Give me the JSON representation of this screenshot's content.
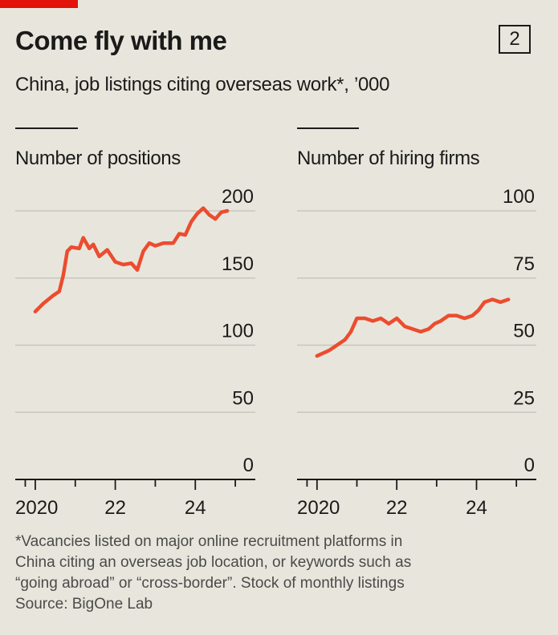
{
  "header": {
    "title": "Come fly with me",
    "chart_number": "2",
    "subtitle": "China, job listings citing overseas work*, ’000"
  },
  "footnote": {
    "lines": [
      "*Vacancies listed on major online recruitment platforms in",
      "China citing an overseas job location, or keywords such as",
      "“going abroad” or “cross-border”. Stock of monthly listings",
      "Source: BigOne Lab"
    ]
  },
  "colors": {
    "accent": "#e3120b",
    "line": "#ec4c2f",
    "background": "#e8e6dc",
    "grid": "#c8c6bd"
  },
  "chart_data": [
    {
      "type": "line",
      "title": "Number of positions",
      "xlabel": "",
      "ylabel": "",
      "ylim": [
        0,
        200
      ],
      "yticks": [
        0,
        50,
        100,
        150,
        200
      ],
      "xlim": [
        2019.5,
        2025.5
      ],
      "xticks": [
        2020,
        2022,
        2024
      ],
      "xtick_labels": [
        "2020",
        "22",
        "24"
      ],
      "grid": true,
      "series": [
        {
          "x": [
            2020.0,
            2020.2,
            2020.45,
            2020.6,
            2020.7,
            2020.8,
            2020.9,
            2021.1,
            2021.2,
            2021.35,
            2021.45,
            2021.6,
            2021.8,
            2022.0,
            2022.2,
            2022.4,
            2022.55,
            2022.7,
            2022.85,
            2023.0,
            2023.2,
            2023.45,
            2023.6,
            2023.75,
            2023.9,
            2024.05,
            2024.2,
            2024.35,
            2024.5,
            2024.65,
            2024.8
          ],
          "y": [
            125,
            131,
            137,
            140,
            152,
            170,
            173,
            172,
            180,
            172,
            175,
            166,
            171,
            162,
            160,
            161,
            156,
            170,
            176,
            174,
            176,
            176,
            183,
            182,
            192,
            198,
            202,
            197,
            194,
            199,
            200
          ]
        }
      ]
    },
    {
      "type": "line",
      "title": "Number of hiring firms",
      "xlabel": "",
      "ylabel": "",
      "ylim": [
        0,
        100
      ],
      "yticks": [
        0,
        25,
        50,
        75,
        100
      ],
      "xlim": [
        2019.5,
        2025.5
      ],
      "xticks": [
        2020,
        2022,
        2024
      ],
      "xtick_labels": [
        "2020",
        "22",
        "24"
      ],
      "grid": true,
      "series": [
        {
          "x": [
            2020.0,
            2020.3,
            2020.5,
            2020.7,
            2020.85,
            2021.0,
            2021.2,
            2021.4,
            2021.6,
            2021.8,
            2022.0,
            2022.2,
            2022.4,
            2022.6,
            2022.8,
            2022.95,
            2023.1,
            2023.3,
            2023.5,
            2023.7,
            2023.9,
            2024.05,
            2024.2,
            2024.4,
            2024.6,
            2024.8
          ],
          "y": [
            46,
            48,
            50,
            52,
            55,
            60,
            60,
            59,
            60,
            58,
            60,
            57,
            56,
            55,
            56,
            58,
            59,
            61,
            61,
            60,
            61,
            63,
            66,
            67,
            66,
            67
          ]
        }
      ]
    }
  ]
}
